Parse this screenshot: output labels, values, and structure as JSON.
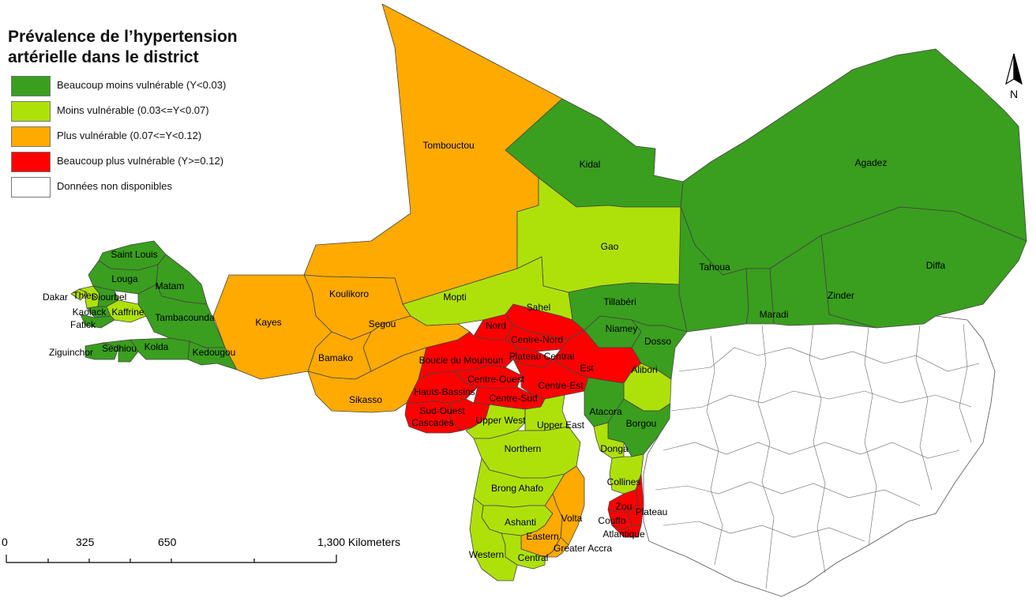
{
  "legend": {
    "title_line1": "Prévalence de l’hypertension",
    "title_line2": "artérielle dans le district",
    "items": [
      {
        "label": "Beaucoup moins vulnérable (Y<0.03)",
        "color": "#3a9e1f"
      },
      {
        "label": "Moins vulnérable (0.03<=Y<0.07)",
        "color": "#aee10a"
      },
      {
        "label": "Plus vulnérable  (0.07<=Y<0.12)",
        "color": "#ffaa00"
      },
      {
        "label": "Beaucoup plus vulnérable (Y>=0.12)",
        "color": "#ff0000"
      },
      {
        "label": "Données non disponibles",
        "color": "#ffffff"
      }
    ]
  },
  "scale": {
    "ticks": [
      "0",
      "325",
      "650",
      "1,300 Kilometers"
    ]
  },
  "north": {
    "label": "N"
  },
  "regions": [
    {
      "name": "Tombouctou",
      "class": "plus"
    },
    {
      "name": "Kidal",
      "class": "beaucoup_moins"
    },
    {
      "name": "Agadez",
      "class": "beaucoup_moins"
    },
    {
      "name": "Gao",
      "class": "moins"
    },
    {
      "name": "Tahoua",
      "class": "beaucoup_moins"
    },
    {
      "name": "Diffa",
      "class": "beaucoup_moins"
    },
    {
      "name": "Zinder",
      "class": "beaucoup_moins"
    },
    {
      "name": "Maradi",
      "class": "beaucoup_moins"
    },
    {
      "name": "Tillabéri",
      "class": "beaucoup_moins"
    },
    {
      "name": "Niamey",
      "class": "beaucoup_moins"
    },
    {
      "name": "Dosso",
      "class": "beaucoup_moins"
    },
    {
      "name": "Mopti",
      "class": "moins"
    },
    {
      "name": "Koulikoro",
      "class": "plus"
    },
    {
      "name": "Kayes",
      "class": "plus"
    },
    {
      "name": "Segou",
      "class": "plus"
    },
    {
      "name": "Bamako",
      "class": "plus"
    },
    {
      "name": "Sikasso",
      "class": "plus"
    },
    {
      "name": "Saint Louis",
      "class": "beaucoup_moins"
    },
    {
      "name": "Louga",
      "class": "beaucoup_moins"
    },
    {
      "name": "Matam",
      "class": "beaucoup_moins"
    },
    {
      "name": "Dakar",
      "class": "moins"
    },
    {
      "name": "Thies",
      "class": "moins"
    },
    {
      "name": "Diourbel",
      "class": "beaucoup_moins"
    },
    {
      "name": "Kaolack",
      "class": "beaucoup_moins"
    },
    {
      "name": "Kaffrine",
      "class": "moins"
    },
    {
      "name": "Fatick",
      "class": "beaucoup_moins"
    },
    {
      "name": "Tambacounda",
      "class": "beaucoup_moins"
    },
    {
      "name": "Kedougou",
      "class": "beaucoup_moins"
    },
    {
      "name": "Ziguinchor",
      "class": "beaucoup_moins"
    },
    {
      "name": "Sedhiou",
      "class": "beaucoup_moins"
    },
    {
      "name": "Kolda",
      "class": "beaucoup_moins"
    },
    {
      "name": "Sahel",
      "class": "beaucoup_plus"
    },
    {
      "name": "Nord",
      "class": "beaucoup_plus"
    },
    {
      "name": "Centre-Nord",
      "class": "beaucoup_plus"
    },
    {
      "name": "Plateau Central",
      "class": "beaucoup_plus"
    },
    {
      "name": "Est",
      "class": "beaucoup_plus"
    },
    {
      "name": "Boucle du Mouhoun",
      "class": "beaucoup_plus"
    },
    {
      "name": "Centre-Ouest",
      "class": "beaucoup_plus"
    },
    {
      "name": "Centre-Est",
      "class": "beaucoup_plus"
    },
    {
      "name": "Hauts-Bassins",
      "class": "beaucoup_plus"
    },
    {
      "name": "Centre-Sud",
      "class": "beaucoup_plus"
    },
    {
      "name": "Sud-Ouest",
      "class": "beaucoup_plus"
    },
    {
      "name": "Cascades",
      "class": "beaucoup_plus"
    },
    {
      "name": "Upper West",
      "class": "moins"
    },
    {
      "name": "Upper East",
      "class": "moins"
    },
    {
      "name": "Northern",
      "class": "moins"
    },
    {
      "name": "Brong Ahafo",
      "class": "moins"
    },
    {
      "name": "Volta",
      "class": "plus"
    },
    {
      "name": "Ashanti",
      "class": "moins"
    },
    {
      "name": "Eastern",
      "class": "plus"
    },
    {
      "name": "Western",
      "class": "moins"
    },
    {
      "name": "Central",
      "class": "moins"
    },
    {
      "name": "Greater Accra",
      "class": "plus"
    },
    {
      "name": "Alibori",
      "class": "moins"
    },
    {
      "name": "Atacora",
      "class": "beaucoup_moins"
    },
    {
      "name": "Borgou",
      "class": "beaucoup_moins"
    },
    {
      "name": "Donga",
      "class": "moins"
    },
    {
      "name": "Collines",
      "class": "moins"
    },
    {
      "name": "Zou",
      "class": "beaucoup_plus"
    },
    {
      "name": "Plateau",
      "class": "beaucoup_plus"
    },
    {
      "name": "Couffo",
      "class": "beaucoup_plus"
    },
    {
      "name": "Atlantique",
      "class": "beaucoup_plus"
    }
  ]
}
